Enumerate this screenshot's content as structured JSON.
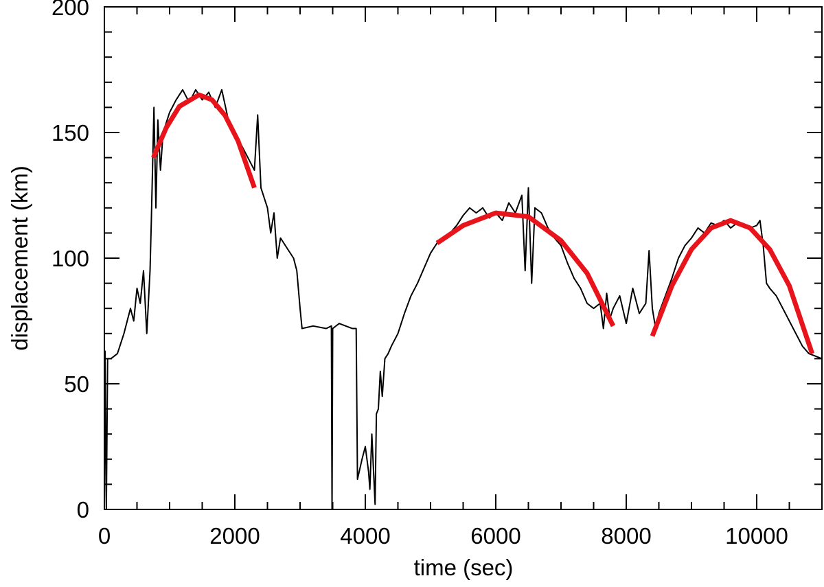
{
  "chart_data": {
    "type": "line",
    "xlabel": "time (sec)",
    "ylabel": "displacement (km)",
    "xlim": [
      0,
      11000
    ],
    "ylim": [
      0,
      200
    ],
    "xticks": [
      0,
      2000,
      4000,
      6000,
      8000,
      10000
    ],
    "yticks": [
      0,
      50,
      100,
      150,
      200
    ],
    "xminorticks": [
      500,
      1000,
      1500,
      2500,
      3000,
      3500,
      4500,
      5000,
      5500,
      6500,
      7000,
      7500,
      8500,
      9000,
      9500,
      10500
    ],
    "yminorticks": [
      10,
      20,
      30,
      40,
      60,
      70,
      80,
      90,
      110,
      120,
      130,
      140,
      160,
      170,
      180,
      190
    ],
    "series": [
      {
        "color": "#000000",
        "width": 2,
        "x": [
          0,
          10,
          30,
          50,
          100,
          200,
          300,
          400,
          450,
          500,
          550,
          600,
          650,
          700,
          720,
          760,
          790,
          820,
          860,
          900,
          1000,
          1100,
          1200,
          1300,
          1400,
          1500,
          1600,
          1700,
          1800,
          1900,
          2000,
          2100,
          2200,
          2300,
          2350,
          2400,
          2500,
          2550,
          2600,
          2650,
          2700,
          2800,
          2900,
          2950,
          3000,
          3030,
          3200,
          3400,
          3480,
          3490,
          3500,
          3600,
          3700,
          3800,
          3860,
          3880,
          3950,
          4000,
          4050,
          4070,
          4100,
          4150,
          4170,
          4200,
          4230,
          4260,
          4300,
          4350,
          4400,
          4500,
          4600,
          4700,
          4800,
          4900,
          5000,
          5100,
          5200,
          5300,
          5400,
          5500,
          5600,
          5700,
          5800,
          5900,
          6000,
          6100,
          6200,
          6300,
          6400,
          6450,
          6500,
          6550,
          6600,
          6700,
          6800,
          6900,
          7000,
          7100,
          7200,
          7300,
          7400,
          7500,
          7600,
          7650,
          7700,
          7750,
          7800,
          7900,
          8000,
          8100,
          8200,
          8300,
          8350,
          8400,
          8450,
          8500,
          8600,
          8700,
          8800,
          8900,
          9000,
          9100,
          9200,
          9300,
          9400,
          9500,
          9600,
          9700,
          9800,
          9900,
          10000,
          10050,
          10100,
          10150,
          10200,
          10300,
          10400,
          10500,
          10600,
          10700,
          10800,
          10900,
          11000
        ],
        "values": [
          0,
          63,
          0,
          60,
          60,
          62,
          70,
          80,
          75,
          88,
          82,
          95,
          70,
          95,
          115,
          160,
          120,
          155,
          135,
          150,
          158,
          163,
          167,
          162,
          167,
          163,
          166,
          160,
          167,
          155,
          150,
          145,
          140,
          135,
          157,
          128,
          120,
          110,
          118,
          100,
          108,
          104,
          100,
          95,
          80,
          72,
          73,
          72,
          73,
          0,
          72,
          74,
          73,
          72,
          72,
          12,
          20,
          25,
          15,
          8,
          30,
          2,
          38,
          40,
          55,
          45,
          60,
          62,
          65,
          70,
          78,
          85,
          90,
          96,
          102,
          106,
          108,
          110,
          113,
          117,
          120,
          118,
          120,
          116,
          118,
          115,
          122,
          118,
          125,
          95,
          128,
          90,
          120,
          118,
          112,
          108,
          105,
          98,
          92,
          88,
          82,
          80,
          82,
          72,
          86,
          76,
          80,
          85,
          74,
          88,
          78,
          82,
          103,
          80,
          72,
          78,
          85,
          92,
          100,
          105,
          108,
          112,
          110,
          114,
          113,
          115,
          112,
          114,
          113,
          112,
          113,
          115,
          105,
          90,
          88,
          85,
          80,
          75,
          70,
          65,
          62,
          61,
          60
        ]
      },
      {
        "color": "#e8141b",
        "width": 7,
        "x": [
          750,
          950,
          1150,
          1450,
          1650,
          1850,
          2050,
          2300
        ],
        "values": [
          140,
          152,
          160.4,
          165,
          163,
          156.8,
          146.6,
          128
        ]
      },
      {
        "color": "#e8141b",
        "width": 7,
        "x": [
          5100,
          5500,
          6000,
          6500,
          7000,
          7400,
          7800
        ],
        "values": [
          106,
          113,
          118,
          116.5,
          107,
          94,
          73
        ]
      },
      {
        "color": "#e8141b",
        "width": 7,
        "x": [
          8400,
          8700,
          9000,
          9300,
          9600,
          9900,
          10200,
          10500,
          10850
        ],
        "values": [
          69,
          89,
          103.5,
          112,
          115,
          112,
          103.5,
          89,
          62
        ]
      }
    ]
  }
}
